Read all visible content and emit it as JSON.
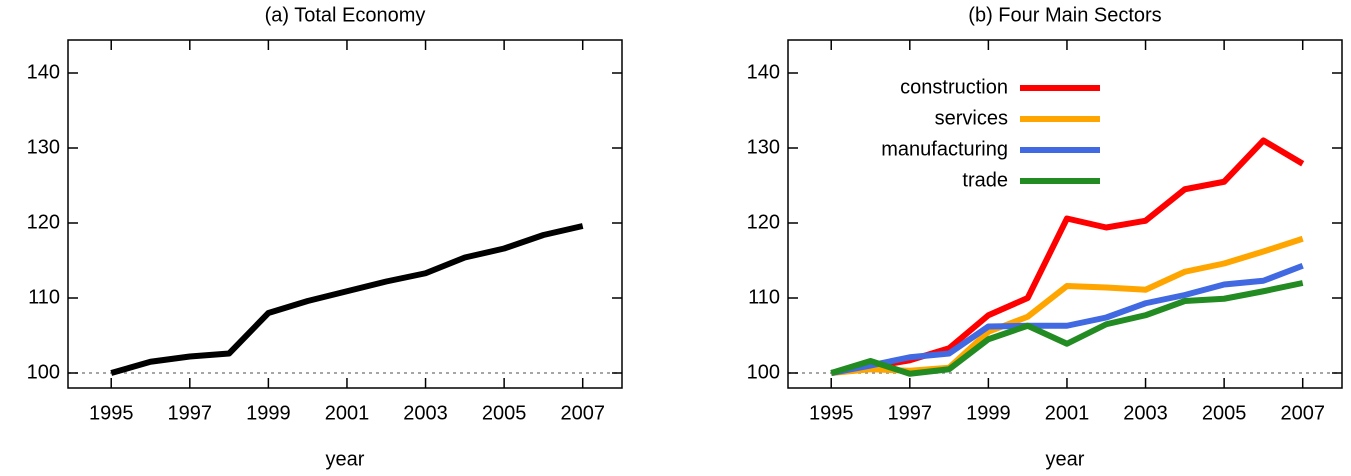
{
  "chart_data": [
    {
      "type": "line",
      "title": "(a) Total Economy",
      "x_label": "year",
      "x": [
        1995,
        1996,
        1997,
        1998,
        1999,
        2000,
        2001,
        2002,
        2003,
        2004,
        2005,
        2006,
        2007
      ],
      "values": [
        100,
        101.5,
        102.2,
        102.6,
        108,
        109.6,
        110.9,
        112.2,
        113.3,
        115.4,
        116.6,
        118.4,
        119.6
      ],
      "color": "#000000",
      "xlim": [
        1993.9,
        2008
      ],
      "xticks": [
        1995,
        1997,
        1999,
        2001,
        2003,
        2005,
        2007
      ],
      "ylim": [
        98,
        144.4
      ],
      "yticks": [
        100,
        110,
        120,
        130,
        140
      ],
      "reference_line": 100
    },
    {
      "type": "line",
      "title": "(b) Four Main Sectors",
      "x_label": "year",
      "x": [
        1995,
        1996,
        1997,
        1998,
        1999,
        2000,
        2001,
        2002,
        2003,
        2004,
        2005,
        2006,
        2007
      ],
      "series": [
        {
          "name": "construction",
          "color": "#ff0000",
          "values": [
            100,
            100.8,
            101.7,
            103.3,
            107.7,
            110,
            120.6,
            119.4,
            120.3,
            124.5,
            125.5,
            131,
            127.9
          ]
        },
        {
          "name": "services",
          "color": "#ffa500",
          "values": [
            100,
            100.5,
            100.3,
            100.7,
            105.5,
            107.5,
            111.6,
            111.4,
            111.1,
            113.5,
            114.6,
            116.2,
            117.9
          ]
        },
        {
          "name": "manufacturing",
          "color": "#4169e1",
          "values": [
            100,
            101,
            102.1,
            102.6,
            106.2,
            106.3,
            106.3,
            107.4,
            109.3,
            110.4,
            111.8,
            112.3,
            114.3
          ]
        },
        {
          "name": "trade",
          "color": "#228b22",
          "values": [
            100,
            101.6,
            99.9,
            100.5,
            104.5,
            106.3,
            103.9,
            106.5,
            107.7,
            109.6,
            109.9,
            110.9,
            112
          ]
        }
      ],
      "legend": "top-left",
      "xlim": [
        1993.9,
        2008
      ],
      "xticks": [
        1995,
        1997,
        1999,
        2001,
        2003,
        2005,
        2007
      ],
      "ylim": [
        98,
        144.4
      ],
      "yticks": [
        100,
        110,
        120,
        130,
        140
      ],
      "reference_line": 100
    }
  ]
}
